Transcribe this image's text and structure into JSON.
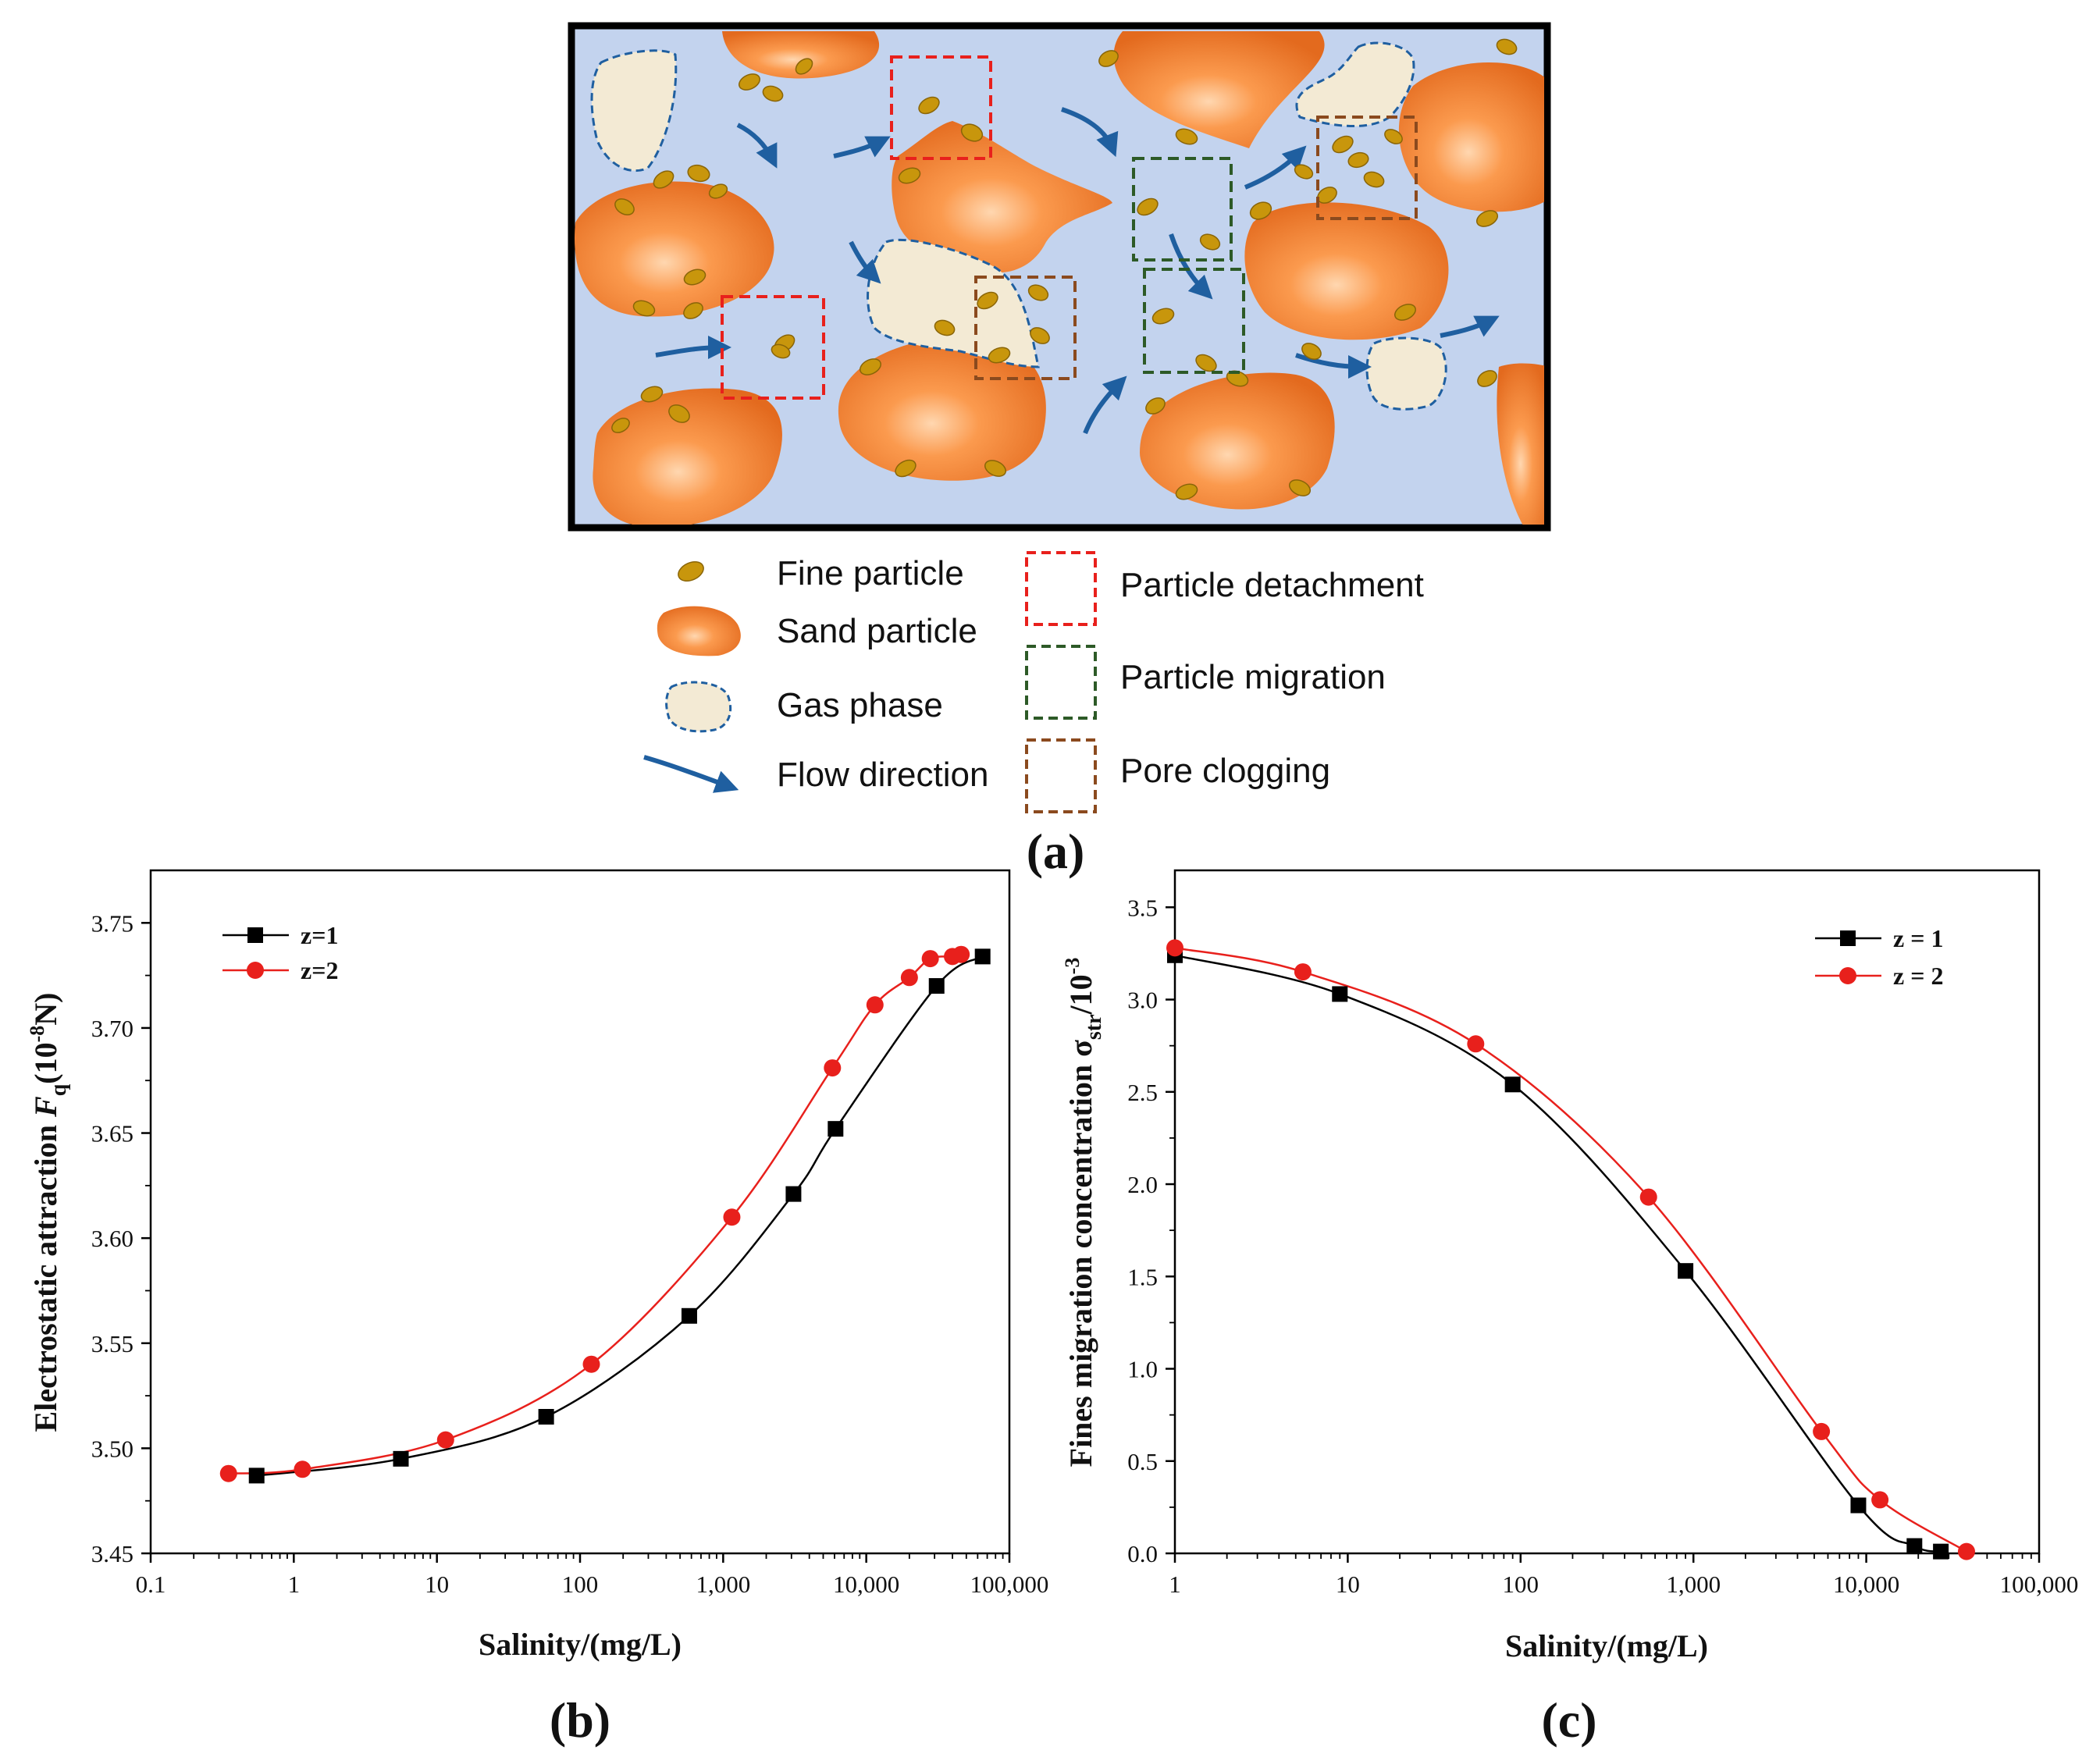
{
  "figure_label_a": "(a)",
  "schematic": {
    "legend": {
      "fine_particle": "Fine particle",
      "sand_particle": "Sand particle",
      "gas_phase": "Gas phase",
      "flow_direction": "Flow direction",
      "particle_detachment": "Particle detachment",
      "particle_migration": "Particle migration",
      "pore_clogging": "Pore clogging"
    },
    "colors": {
      "background": "#c3d3ee",
      "sand": "#f07a2e",
      "fines": "#c8960c",
      "gas": "#f3ead4",
      "flow": "#1f5fa0",
      "detachment": "#e8201c",
      "migration": "#2d5a27",
      "clogging": "#8b4a1e"
    }
  },
  "chart_data": [
    {
      "type": "line",
      "panel": "(b)",
      "title": "",
      "xlabel": "Salinity/(mg/L)",
      "ylabel_main": "Electrostatic attraction ",
      "ylabel_symbol": "F",
      "ylabel_sub": "q",
      "ylabel_unit_pre": "(10",
      "ylabel_exp": "-8",
      "ylabel_unit_post": "N)",
      "xscale": "log",
      "xlim": [
        0.1,
        100000
      ],
      "ylim": [
        3.45,
        3.775
      ],
      "x_ticks": [
        0.1,
        1,
        10,
        100,
        1000,
        10000,
        100000
      ],
      "x_tick_labels": [
        "0.1",
        "1",
        "10",
        "100",
        "1,000",
        "10,000",
        "100,000"
      ],
      "y_ticks": [
        3.45,
        3.5,
        3.55,
        3.6,
        3.65,
        3.7,
        3.75
      ],
      "y_tick_labels": [
        "3.45",
        "3.50",
        "3.55",
        "3.60",
        "3.65",
        "3.70",
        "3.75"
      ],
      "legend_position": "top-left",
      "series": [
        {
          "name": "z=1",
          "color": "#000000",
          "marker": "square",
          "x": [
            0.55,
            5.6,
            58,
            580,
            3100,
            6100,
            31000,
            65000
          ],
          "y": [
            3.487,
            3.495,
            3.515,
            3.563,
            3.621,
            3.652,
            3.72,
            3.734
          ]
        },
        {
          "name": "z=2",
          "color": "#e8201c",
          "marker": "circle",
          "x": [
            0.35,
            1.15,
            11.5,
            120,
            1150,
            5800,
            11500,
            20000,
            28000,
            40000,
            46000
          ],
          "y": [
            3.488,
            3.49,
            3.504,
            3.54,
            3.61,
            3.681,
            3.711,
            3.724,
            3.733,
            3.734,
            3.735
          ]
        }
      ]
    },
    {
      "type": "line",
      "panel": "(c)",
      "title": "",
      "xlabel": "Salinity/(mg/L)",
      "ylabel_main": "Fines migration concentration ",
      "ylabel_symbol": "σ",
      "ylabel_sub": "str",
      "ylabel_unit_pre": "/10",
      "ylabel_exp": "-3",
      "ylabel_unit_post": "",
      "xscale": "log",
      "xlim": [
        1,
        100000
      ],
      "ylim": [
        0,
        3.7
      ],
      "x_ticks": [
        1,
        10,
        100,
        1000,
        10000,
        100000
      ],
      "x_tick_labels": [
        "1",
        "10",
        "100",
        "1,000",
        "10,000",
        "100,000"
      ],
      "y_ticks": [
        0,
        0.5,
        1,
        1.5,
        2,
        2.5,
        3,
        3.5
      ],
      "y_tick_labels": [
        "0.0",
        "0.5",
        "1.0",
        "1.5",
        "2.0",
        "2.5",
        "3.0",
        "3.5"
      ],
      "legend_position": "top-right",
      "series": [
        {
          "name": "z = 1",
          "color": "#000000",
          "marker": "square",
          "x": [
            1,
            9,
            90,
            900,
            9000,
            19000,
            27000
          ],
          "y": [
            3.24,
            3.03,
            2.54,
            1.53,
            0.26,
            0.04,
            0.01
          ]
        },
        {
          "name": "z = 2",
          "color": "#e8201c",
          "marker": "circle",
          "x": [
            1,
            5.5,
            55,
            550,
            5500,
            12000,
            38000
          ],
          "y": [
            3.28,
            3.15,
            2.76,
            1.93,
            0.66,
            0.29,
            0.01
          ]
        }
      ]
    }
  ]
}
